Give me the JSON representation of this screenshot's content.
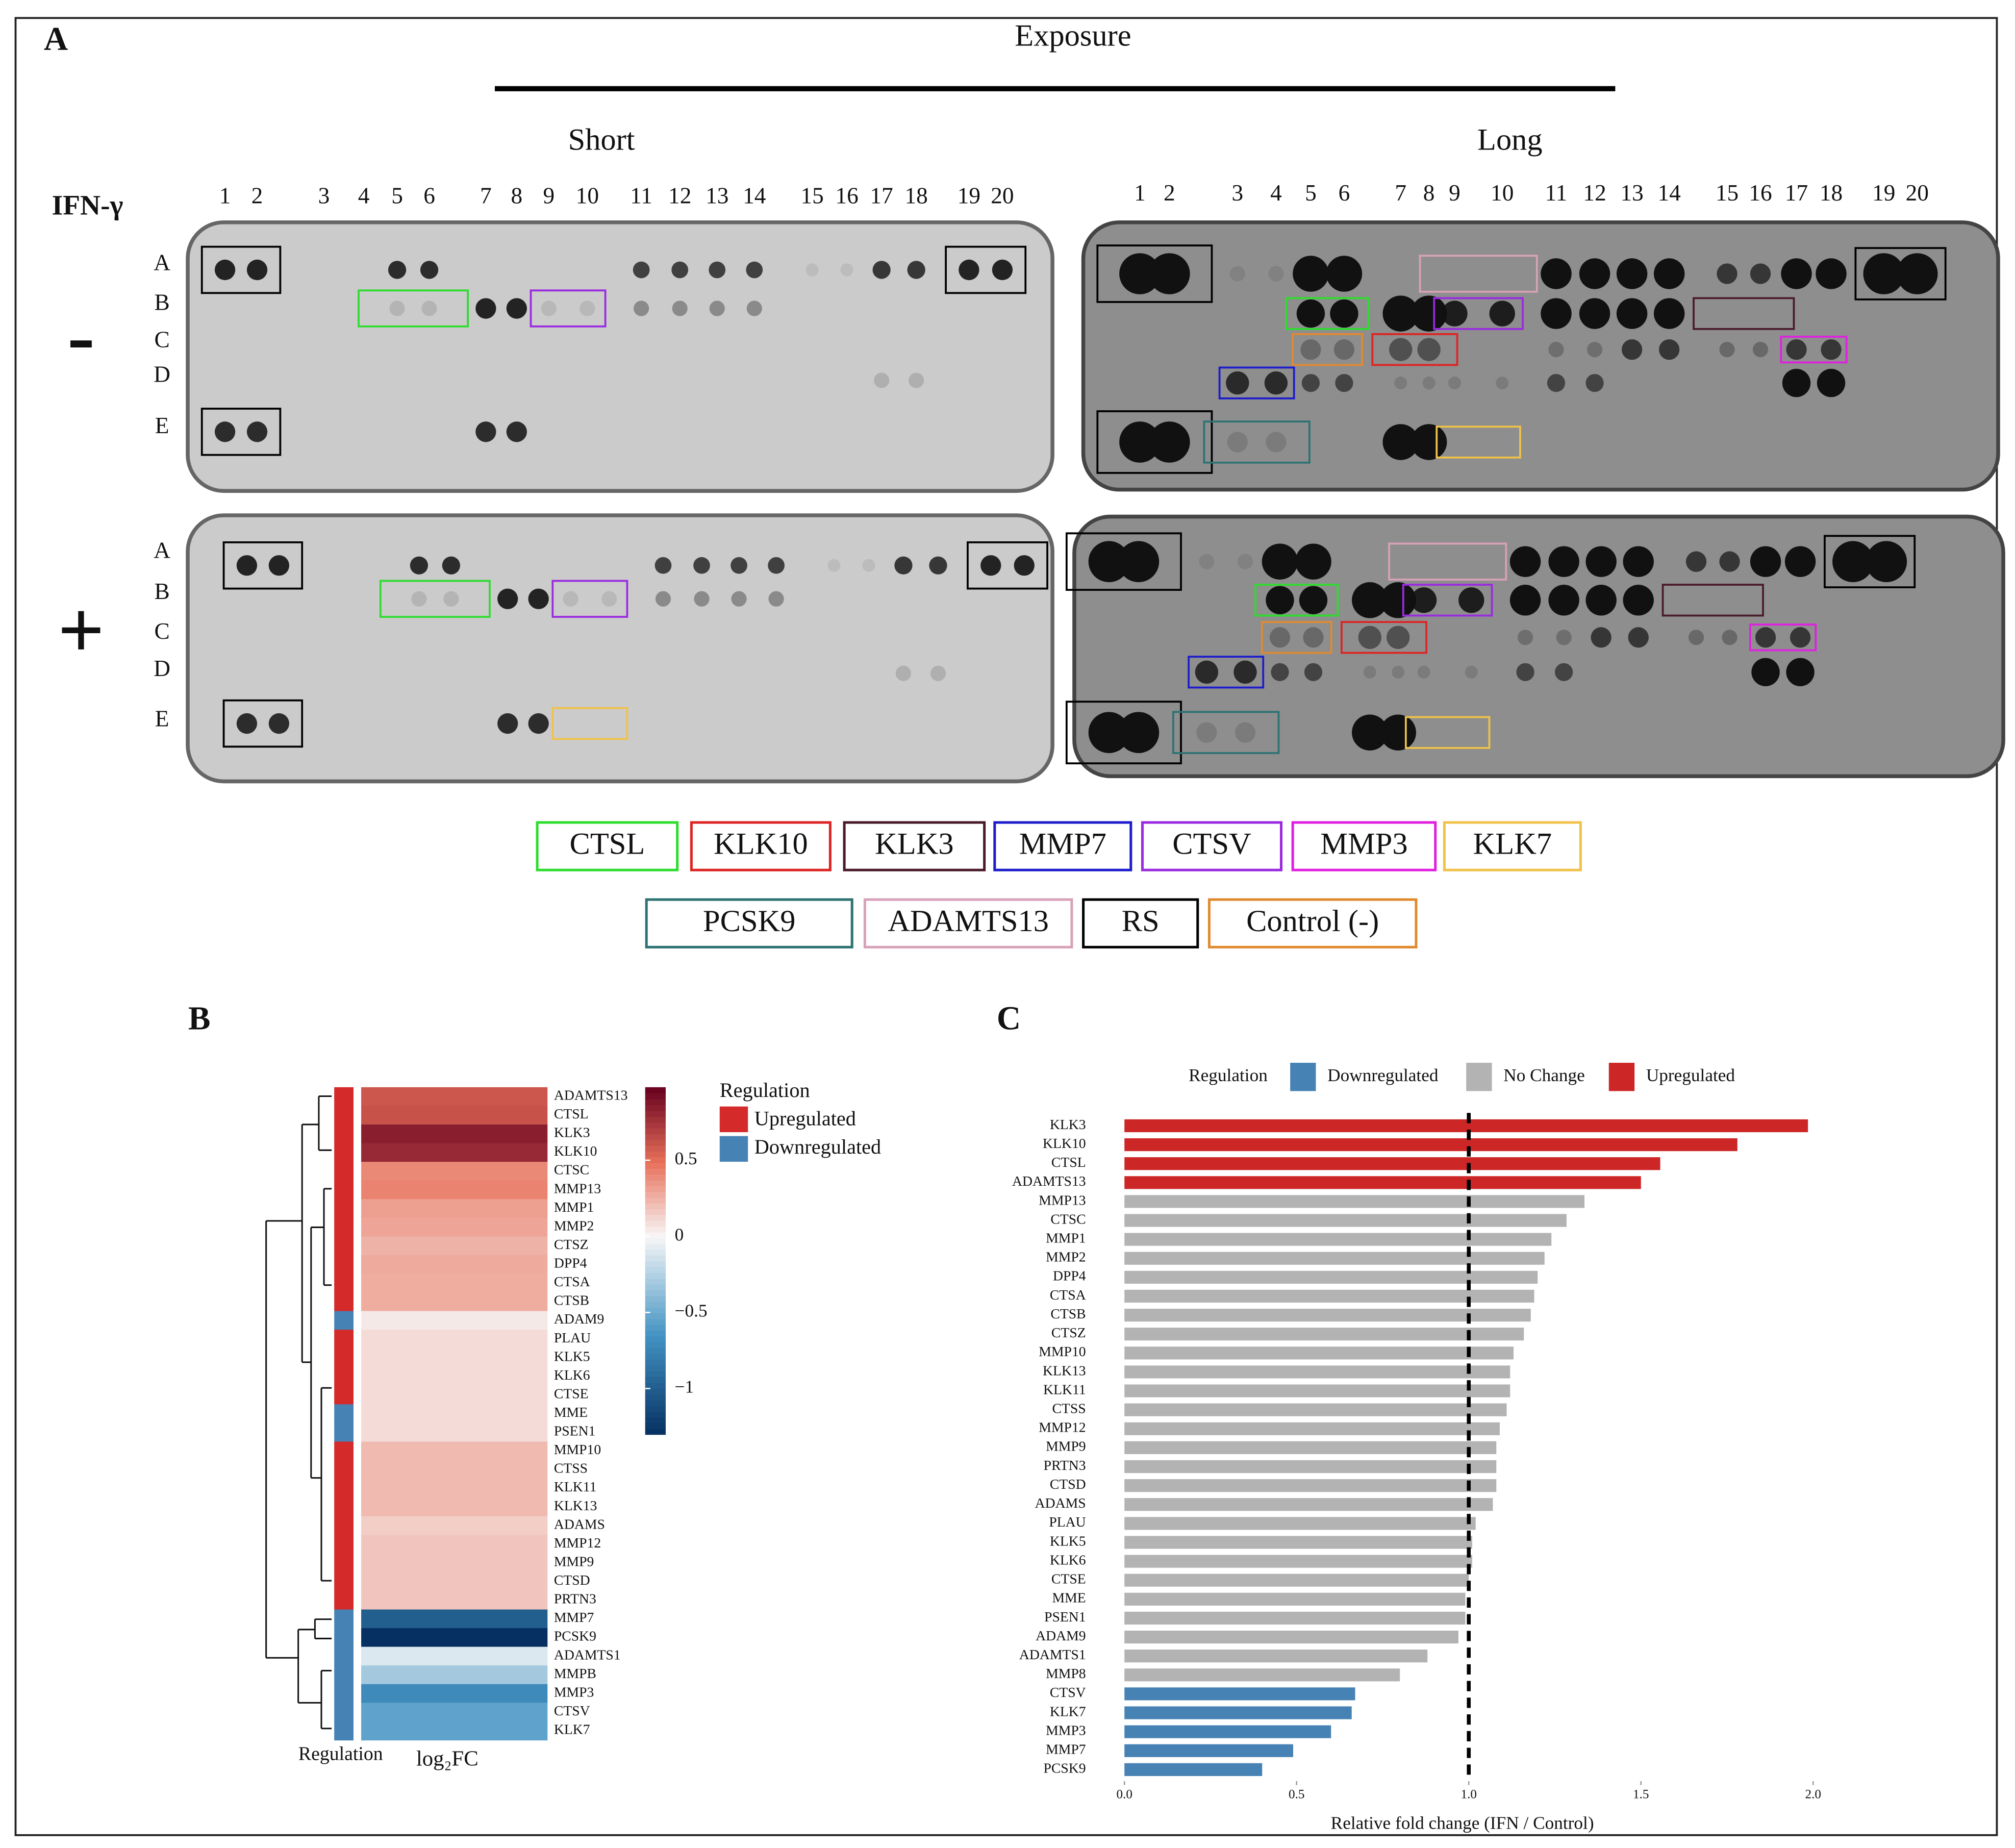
{
  "panel_a": {
    "label": "A",
    "title": "Exposure",
    "short_label": "Short",
    "long_label": "Long",
    "treatment_label": "IFN-γ",
    "conditions": [
      "-",
      "+"
    ],
    "columns": [
      1,
      2,
      3,
      4,
      5,
      6,
      7,
      8,
      9,
      10,
      11,
      12,
      13,
      14,
      15,
      16,
      17,
      18,
      19,
      20
    ],
    "rows": [
      "A",
      "B",
      "C",
      "D",
      "E"
    ],
    "legend": [
      {
        "name": "CTSL",
        "color": "#2edc2e"
      },
      {
        "name": "KLK10",
        "color": "#dd2424"
      },
      {
        "name": "KLK3",
        "color": "#4a1a2a"
      },
      {
        "name": "MMP7",
        "color": "#1c1ccc"
      },
      {
        "name": "CTSV",
        "color": "#9a2ae0"
      },
      {
        "name": "MMP3",
        "color": "#e020e0"
      },
      {
        "name": "KLK7",
        "color": "#f0c24a"
      },
      {
        "name": "PCSK9",
        "color": "#2e7272"
      },
      {
        "name": "ADAMTS13",
        "color": "#d8a2b8"
      },
      {
        "name": "RS",
        "color": "#000000"
      },
      {
        "name": "Control (-)",
        "color": "#e08a30"
      }
    ]
  },
  "chart_data": [
    {
      "type": "heatmap",
      "panel_label": "B",
      "categories": [
        "ADAMTS13",
        "CTSL",
        "KLK3",
        "KLK10",
        "CTSC",
        "MMP13",
        "MMP1",
        "MMP2",
        "CTSZ",
        "DPP4",
        "CTSA",
        "CTSB",
        "ADAM9",
        "PLAU",
        "KLK5",
        "KLK6",
        "CTSE",
        "MME",
        "PSEN1",
        "MMP10",
        "CTSS",
        "KLK11",
        "KLK13",
        "ADAMS",
        "MMP12",
        "MMP9",
        "CTSD",
        "PRTN3",
        "MMP7",
        "PCSK9",
        "ADAMTS1",
        "MMPB",
        "MMP3",
        "CTSV",
        "KLK7"
      ],
      "values": [
        0.6,
        0.62,
        0.85,
        0.8,
        0.4,
        0.42,
        0.32,
        0.3,
        0.25,
        0.28,
        0.27,
        0.27,
        0.05,
        0.1,
        0.1,
        0.1,
        0.1,
        0.1,
        0.1,
        0.22,
        0.22,
        0.22,
        0.22,
        0.15,
        0.18,
        0.18,
        0.18,
        0.18,
        -1.0,
        -1.3,
        -0.1,
        -0.3,
        -0.7,
        -0.55,
        -0.55
      ],
      "regulation": [
        "Upregulated",
        "Upregulated",
        "Upregulated",
        "Upregulated",
        "Upregulated",
        "Upregulated",
        "Upregulated",
        "Upregulated",
        "Upregulated",
        "Upregulated",
        "Upregulated",
        "Upregulated",
        "Downregulated",
        "Upregulated",
        "Upregulated",
        "Upregulated",
        "Upregulated",
        "Downregulated",
        "Downregulated",
        "Upregulated",
        "Upregulated",
        "Upregulated",
        "Upregulated",
        "Upregulated",
        "Upregulated",
        "Upregulated",
        "Upregulated",
        "Upregulated",
        "Downregulated",
        "Downregulated",
        "Downregulated",
        "Downregulated",
        "Downregulated",
        "Downregulated",
        "Downregulated"
      ],
      "legend_title": "Regulation",
      "legend": [
        {
          "name": "Upregulated",
          "color": "#d42a2a"
        },
        {
          "name": "Downregulated",
          "color": "#4682b4"
        }
      ],
      "colorscale": [
        "#053061",
        "#4393c3",
        "#f7f7f7",
        "#e8705a",
        "#67001f"
      ],
      "clim": [
        -1.3,
        0.98
      ],
      "cticks": [
        0.5,
        0,
        {
          "value": -0.5,
          "label": "−0.5"
        },
        {
          "value": -1,
          "label": "−1"
        }
      ],
      "annotation_label": "Regulation",
      "x_label": "log₂FC"
    },
    {
      "type": "bar",
      "orientation": "horizontal",
      "panel_label": "C",
      "legend_title": "Regulation",
      "legend": [
        {
          "name": "Downregulated",
          "color": "#4682b4"
        },
        {
          "name": "No Change",
          "color": "#b3b3b3"
        },
        {
          "name": "Upregulated",
          "color": "#cd2626"
        }
      ],
      "categories": [
        "KLK3",
        "KLK10",
        "CTSL",
        "ADAMTS13",
        "MMP13",
        "CTSC",
        "MMP1",
        "MMP2",
        "DPP4",
        "CTSA",
        "CTSB",
        "CTSZ",
        "MMP10",
        "KLK13",
        "KLK11",
        "CTSS",
        "MMP12",
        "MMP9",
        "PRTN3",
        "CTSD",
        "ADAMS",
        "PLAU",
        "KLK5",
        "KLK6",
        "CTSE",
        "MME",
        "PSEN1",
        "ADAM9",
        "ADAMTS1",
        "MMP8",
        "CTSV",
        "KLK7",
        "MMP3",
        "MMP7",
        "PCSK9"
      ],
      "values": [
        1.985,
        1.78,
        1.556,
        1.5,
        1.336,
        1.284,
        1.24,
        1.22,
        1.2,
        1.19,
        1.18,
        1.16,
        1.13,
        1.12,
        1.12,
        1.11,
        1.09,
        1.08,
        1.08,
        1.08,
        1.07,
        1.02,
        1.01,
        1.01,
        1.0,
        0.99,
        0.99,
        0.97,
        0.88,
        0.8,
        0.67,
        0.66,
        0.6,
        0.49,
        0.4
      ],
      "regulation": [
        "Upregulated",
        "Upregulated",
        "Upregulated",
        "Upregulated",
        "No Change",
        "No Change",
        "No Change",
        "No Change",
        "No Change",
        "No Change",
        "No Change",
        "No Change",
        "No Change",
        "No Change",
        "No Change",
        "No Change",
        "No Change",
        "No Change",
        "No Change",
        "No Change",
        "No Change",
        "No Change",
        "No Change",
        "No Change",
        "No Change",
        "No Change",
        "No Change",
        "No Change",
        "No Change",
        "No Change",
        "Downregulated",
        "Downregulated",
        "Downregulated",
        "Downregulated",
        "Downregulated"
      ],
      "xlim": [
        0,
        2
      ],
      "xticks": [
        {
          "value": 0,
          "label": "0.0"
        },
        0.5,
        {
          "value": 1,
          "label": "1.0"
        },
        1.5,
        {
          "value": 2,
          "label": "2.0"
        }
      ],
      "x_label": "Relative fold change (IFN / Control)",
      "reference_line": 1
    }
  ]
}
